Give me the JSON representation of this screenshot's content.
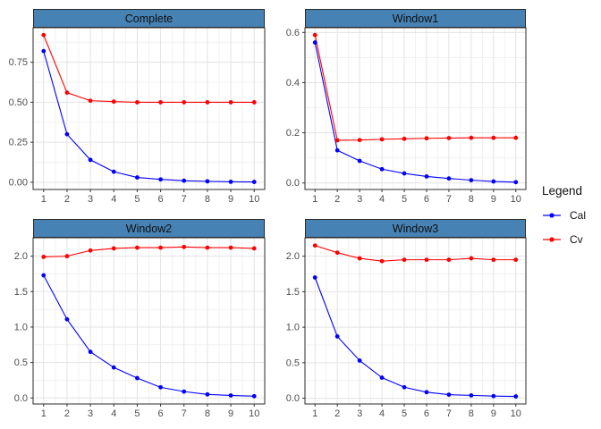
{
  "figure": {
    "background": "#FFFFFF",
    "strip_fill": "#4682B4",
    "strip_text_color": "#101010",
    "grid_major_color": "#E3E3E3",
    "grid_minor_color": "#F1F1F1",
    "panel_border_color": "#2B2B2B",
    "tick_color": "#333333",
    "tick_label_color": "#4D4D4D"
  },
  "legend": {
    "title": "Legend",
    "position": "right",
    "items": [
      {
        "label": "Cal",
        "color": "#0000FF"
      },
      {
        "label": "Cv",
        "color": "#FF0000"
      }
    ]
  },
  "chart_data": [
    {
      "type": "line",
      "title": "Complete",
      "x": [
        1,
        2,
        3,
        4,
        5,
        6,
        7,
        8,
        9,
        10
      ],
      "xlim": [
        0.55,
        10.45
      ],
      "ylim": [
        -0.045,
        0.966
      ],
      "yticks": [
        0,
        0.25,
        0.5,
        0.75
      ],
      "ytick_labels": [
        "0.00",
        "0.25",
        "0.50",
        "0.75"
      ],
      "grid": true,
      "series": [
        {
          "name": "Cal",
          "color": "#0000FF",
          "values": [
            0.82,
            0.3,
            0.14,
            0.066,
            0.03,
            0.018,
            0.01,
            0.006,
            0.003,
            0.002
          ]
        },
        {
          "name": "Cv",
          "color": "#FF0000",
          "values": [
            0.92,
            0.56,
            0.51,
            0.504,
            0.5,
            0.5,
            0.5,
            0.5,
            0.5,
            0.5
          ]
        }
      ]
    },
    {
      "type": "line",
      "title": "Window1",
      "x": [
        1,
        2,
        3,
        4,
        5,
        6,
        7,
        8,
        9,
        10
      ],
      "xlim": [
        0.55,
        10.45
      ],
      "ylim": [
        -0.026,
        0.619
      ],
      "yticks": [
        0,
        0.2,
        0.4,
        0.6
      ],
      "ytick_labels": [
        "0.0",
        "0.2",
        "0.4",
        "0.6"
      ],
      "grid": true,
      "series": [
        {
          "name": "Cal",
          "color": "#0000FF",
          "values": [
            0.56,
            0.13,
            0.088,
            0.055,
            0.038,
            0.026,
            0.018,
            0.011,
            0.006,
            0.003
          ]
        },
        {
          "name": "Cv",
          "color": "#FF0000",
          "values": [
            0.59,
            0.17,
            0.171,
            0.174,
            0.176,
            0.178,
            0.179,
            0.18,
            0.18,
            0.18
          ]
        }
      ]
    },
    {
      "type": "line",
      "title": "Window2",
      "x": [
        1,
        2,
        3,
        4,
        5,
        6,
        7,
        8,
        9,
        10
      ],
      "xlim": [
        0.55,
        10.45
      ],
      "ylim": [
        -0.085,
        2.26
      ],
      "yticks": [
        0,
        0.5,
        1.0,
        1.5,
        2.0
      ],
      "ytick_labels": [
        "0.0",
        "0.5",
        "1.0",
        "1.5",
        "2.0"
      ],
      "grid": true,
      "series": [
        {
          "name": "Cal",
          "color": "#0000FF",
          "values": [
            1.73,
            1.11,
            0.65,
            0.43,
            0.28,
            0.15,
            0.09,
            0.05,
            0.035,
            0.025
          ]
        },
        {
          "name": "Cv",
          "color": "#FF0000",
          "values": [
            1.99,
            2.0,
            2.08,
            2.11,
            2.12,
            2.12,
            2.13,
            2.12,
            2.12,
            2.11
          ]
        }
      ]
    },
    {
      "type": "line",
      "title": "Window3",
      "x": [
        1,
        2,
        3,
        4,
        5,
        6,
        7,
        8,
        9,
        10
      ],
      "xlim": [
        0.55,
        10.45
      ],
      "ylim": [
        -0.081,
        2.26
      ],
      "yticks": [
        0,
        0.5,
        1.0,
        1.5,
        2.0
      ],
      "ytick_labels": [
        "0.0",
        "0.5",
        "1.0",
        "1.5",
        "2.0"
      ],
      "grid": true,
      "series": [
        {
          "name": "Cal",
          "color": "#0000FF",
          "values": [
            1.7,
            0.87,
            0.53,
            0.29,
            0.155,
            0.085,
            0.05,
            0.04,
            0.03,
            0.025
          ]
        },
        {
          "name": "Cv",
          "color": "#FF0000",
          "values": [
            2.15,
            2.05,
            1.97,
            1.93,
            1.95,
            1.95,
            1.95,
            1.97,
            1.95,
            1.95
          ]
        }
      ]
    }
  ]
}
